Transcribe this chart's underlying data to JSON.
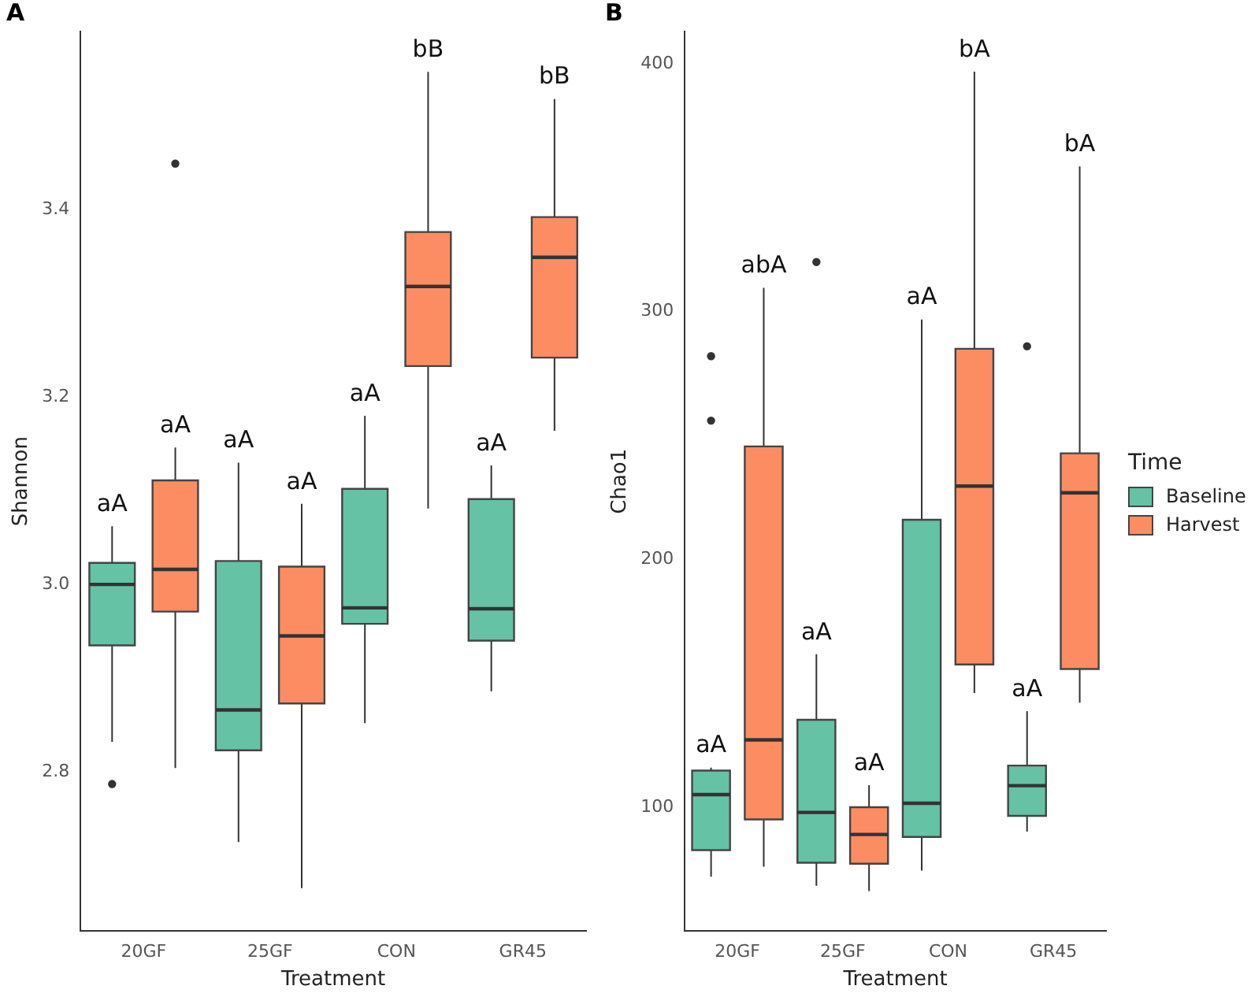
{
  "chart_data": [
    {
      "type": "box",
      "title": "A",
      "xlabel": "Treatment",
      "ylabel": "Shannon",
      "categories": [
        "20GF",
        "25GF",
        "CON",
        "GR45"
      ],
      "legend": false,
      "ylim": [
        2.63,
        3.59
      ],
      "yticks": [
        2.8,
        {
          "value": 3,
          "label": "3.0"
        },
        3.2,
        3.4
      ],
      "series": [
        {
          "color": "#66c2a5",
          "boxes": [
            {
              "low": 2.832,
              "q1": 2.935,
              "median": 3.0,
              "q3": 3.023,
              "high": 3.062,
              "outliers": [
                2.787
              ]
            },
            {
              "low": 2.725,
              "q1": 2.823,
              "median": 2.866,
              "q3": 3.025,
              "high": 3.13
            },
            {
              "low": 2.852,
              "q1": 2.958,
              "median": 2.975,
              "q3": 3.102,
              "high": 3.18
            },
            {
              "low": 2.886,
              "q1": 2.94,
              "median": 2.974,
              "q3": 3.091,
              "high": 3.127
            }
          ]
        },
        {
          "color": "#fc8d62",
          "boxes": [
            {
              "low": 2.804,
              "q1": 2.971,
              "median": 3.016,
              "q3": 3.111,
              "high": 3.146,
              "outliers": [
                3.449
              ]
            },
            {
              "low": 2.676,
              "q1": 2.873,
              "median": 2.945,
              "q3": 3.019,
              "high": 3.086
            },
            {
              "low": 3.081,
              "q1": 3.233,
              "median": 3.318,
              "q3": 3.376,
              "high": 3.547
            },
            {
              "low": 3.164,
              "q1": 3.242,
              "median": 3.349,
              "q3": 3.392,
              "high": 3.518
            }
          ]
        }
      ],
      "annotations": [
        "aA",
        "aA",
        "aA",
        "aA",
        "aA",
        "bB",
        "aA",
        "bB"
      ]
    },
    {
      "type": "box",
      "title": "B",
      "xlabel": "Treatment",
      "ylabel": "Chao1",
      "categories": [
        "20GF",
        "25GF",
        "CON",
        "GR45"
      ],
      "legend": "right",
      "legend_title": "Time",
      "ylim": [
        50,
        413
      ],
      "yticks": [
        100,
        200,
        300,
        400
      ],
      "series": [
        {
          "name": "Baseline",
          "color": "#66c2a5",
          "boxes": [
            {
              "low": 72,
              "q1": 82.7,
              "median": 105.1,
              "q3": 114.8,
              "high": 116,
              "outliers": [
                256,
                282
              ]
            },
            {
              "low": 68.3,
              "q1": 77.6,
              "median": 97.9,
              "q3": 135.3,
              "high": 161.7,
              "outliers": [
                320
              ]
            },
            {
              "low": 74.4,
              "q1": 88,
              "median": 101.6,
              "q3": 216,
              "high": 296.8
            },
            {
              "low": 90.2,
              "q1": 96.5,
              "median": 108.7,
              "q3": 116.8,
              "high": 138.8,
              "outliers": [
                286
              ]
            }
          ]
        },
        {
          "name": "Harvest",
          "color": "#fc8d62",
          "boxes": [
            {
              "low": 76,
              "q1": 95.1,
              "median": 127.2,
              "q3": 245.6,
              "high": 309.6
            },
            {
              "low": 66.2,
              "q1": 77.2,
              "median": 89,
              "q3": 100,
              "high": 108.9
            },
            {
              "low": 146.1,
              "q1": 157.6,
              "median": 229.6,
              "q3": 285,
              "high": 396.8
            },
            {
              "low": 142.2,
              "q1": 155.8,
              "median": 226.9,
              "q3": 242.8,
              "high": 358.6
            }
          ]
        }
      ],
      "annotations": [
        "aA",
        "abA",
        "aA",
        "aA",
        "aA",
        "bA",
        "aA",
        "bA"
      ]
    }
  ]
}
